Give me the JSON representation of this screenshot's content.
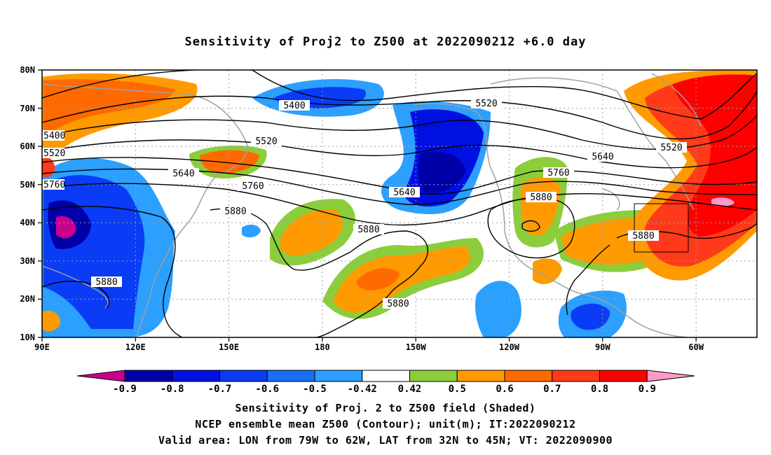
{
  "title": "Sensitivity of Proj2 to Z500 at 2022090212 +6.0 day",
  "axes": {
    "lat_labels": [
      "80N",
      "70N",
      "60N",
      "50N",
      "40N",
      "30N",
      "20N",
      "10N"
    ],
    "lon_labels": [
      "90E",
      "120E",
      "150E",
      "180",
      "150W",
      "120W",
      "90W",
      "60W"
    ]
  },
  "contour_labels": [
    "5400",
    "5520",
    "5640",
    "5760",
    "5880",
    "5880",
    "5880",
    "5880",
    "5880",
    "5880",
    "5880",
    "5520",
    "5640",
    "5760",
    "5880",
    "5520",
    "5640",
    "5760",
    "5400",
    "5520"
  ],
  "colorbar": {
    "labels": [
      "-0.9",
      "-0.8",
      "-0.7",
      "-0.6",
      "-0.5",
      "-0.42",
      "0.42",
      "0.5",
      "0.6",
      "0.7",
      "0.8",
      "0.9"
    ],
    "colors": [
      "#c8008c",
      "#0000a8",
      "#0010e0",
      "#0a3cf5",
      "#1a6ef5",
      "#2ba0ff",
      "#00c8ff",
      "#ffffff",
      "#8ccd3c",
      "#ff9a00",
      "#ff6a00",
      "#ff3a1a",
      "#ff0000",
      "#ff9ac8"
    ]
  },
  "footer": {
    "line1": "Sensitivity of Proj. 2 to Z500 field (Shaded)",
    "line2": "NCEP ensemble mean Z500 (Contour); unit(m); IT:2022090212",
    "line3": "Valid area: LON from 79W to 62W, LAT from 32N to 45N; VT: 2022090900"
  }
}
